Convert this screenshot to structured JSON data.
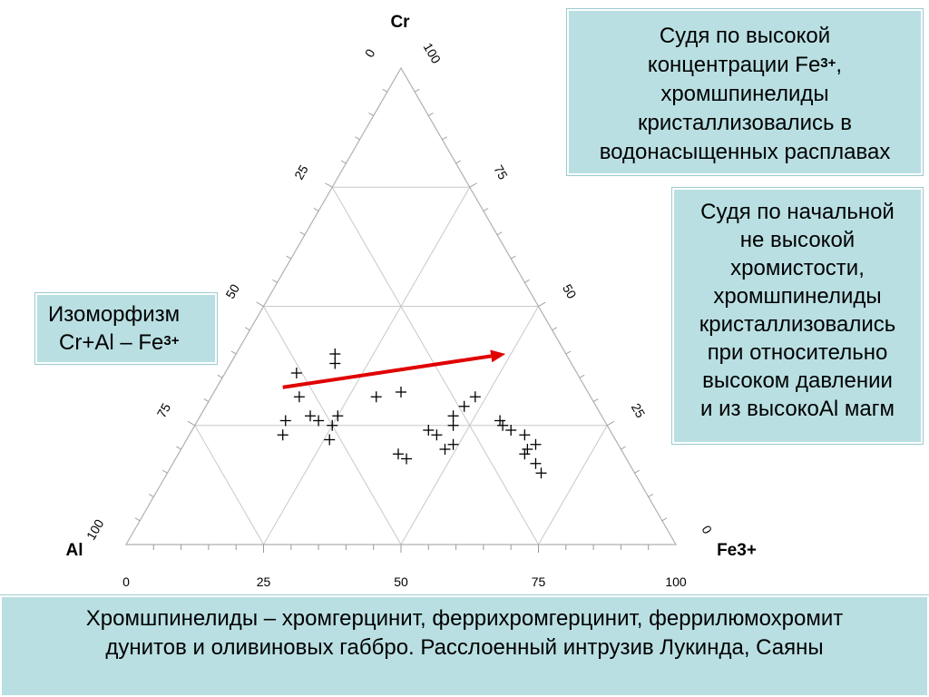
{
  "chart_data": {
    "type": "scatter",
    "subtype": "ternary",
    "vertices": {
      "top": "Cr",
      "left": "Al",
      "right": "Fe3+"
    },
    "ticks": {
      "bottom_axis": [
        "0",
        "25",
        "50",
        "75",
        "100"
      ],
      "left_edge": [
        "0",
        "25",
        "50",
        "75",
        "100"
      ],
      "right_edge": [
        "100",
        "75",
        "50",
        "25",
        "0"
      ]
    },
    "grid": true,
    "marker": "+",
    "points_cr_fe": [
      [
        36,
        13
      ],
      [
        31,
        16
      ],
      [
        40,
        18
      ],
      [
        38,
        19
      ],
      [
        26,
        16
      ],
      [
        23,
        17
      ],
      [
        27,
        20
      ],
      [
        26,
        22
      ],
      [
        27,
        25
      ],
      [
        25,
        25
      ],
      [
        22,
        26
      ],
      [
        19,
        40
      ],
      [
        18,
        42
      ],
      [
        23,
        45
      ],
      [
        24,
        43
      ],
      [
        25,
        47
      ],
      [
        27,
        46
      ],
      [
        29,
        47
      ],
      [
        31,
        48
      ],
      [
        21,
        49
      ],
      [
        20,
        48
      ],
      [
        26,
        55
      ],
      [
        25,
        56
      ],
      [
        24,
        58
      ],
      [
        20,
        63
      ],
      [
        21,
        64
      ],
      [
        23,
        61
      ],
      [
        15,
        68
      ],
      [
        17,
        66
      ],
      [
        19,
        63
      ],
      [
        32,
        34
      ],
      [
        31,
        30
      ]
    ],
    "trend_arrow": {
      "from": [
        33,
        12
      ],
      "to": [
        40,
        49
      ],
      "color": "#e00000"
    }
  },
  "texts": {
    "box_top_right": {
      "line1": "Судя по высокой",
      "line2a": "концентрации Fe",
      "line2sup": "3+",
      "line2b": ",",
      "line3": "хромшпинелиды",
      "line4": "кристаллизовались в",
      "line5": "водонасыщенных расплавах"
    },
    "box_mid_right": {
      "line1": "Судя по начальной",
      "line2": "не высокой",
      "line3": "хромистости,",
      "line4": "хромшпинелиды",
      "line5": "кристаллизовались",
      "line6": "при относительно",
      "line7": "высоком давлении",
      "line8": "и  из высокоAl магм"
    },
    "box_left": {
      "line1": "Изоморфизм",
      "line2a": "Cr+Al – Fe",
      "line2sup": "3+"
    },
    "box_bottom": {
      "line1": "Хромшпинелиды – хромгерцинит, феррихромгерцинит, феррилюмохромит",
      "line2": "дунитов и оливиновых габбро. Расслоенный интрузив Лукинда, Саяны"
    }
  }
}
